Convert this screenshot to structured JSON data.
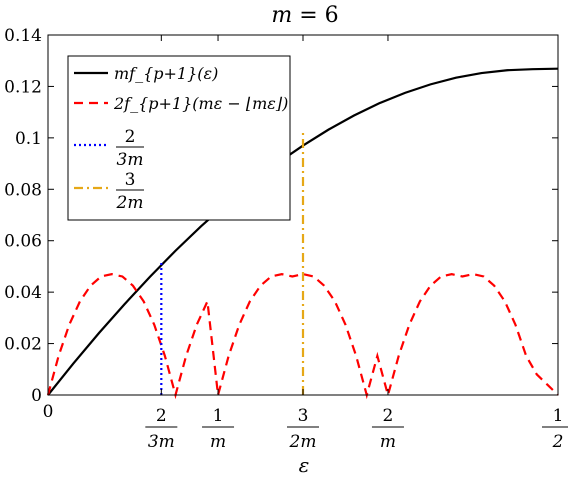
{
  "chart_data": {
    "type": "line",
    "title": "m = 6",
    "xlabel": "ε",
    "ylabel": "",
    "m": 6,
    "xlim": [
      0,
      0.5
    ],
    "ylim": [
      0,
      0.14
    ],
    "yticks": [
      {
        "value": 0,
        "label": "0"
      },
      {
        "value": 0.02,
        "label": "0.02"
      },
      {
        "value": 0.04,
        "label": "0.04"
      },
      {
        "value": 0.06,
        "label": "0.06"
      },
      {
        "value": 0.08,
        "label": "0.08"
      },
      {
        "value": 0.1,
        "label": "0.1"
      },
      {
        "value": 0.12,
        "label": "0.12"
      },
      {
        "value": 0.14,
        "label": "0.14"
      }
    ],
    "xticks": [
      {
        "value": 0,
        "label": "0"
      },
      {
        "value": 0.1111,
        "num": "2",
        "den": "3m"
      },
      {
        "value": 0.1667,
        "num": "1",
        "den": "m"
      },
      {
        "value": 0.25,
        "num": "3",
        "den": "2m"
      },
      {
        "value": 0.3333,
        "num": "2",
        "den": "m"
      },
      {
        "value": 0.5,
        "num": "1",
        "den": "2"
      }
    ],
    "series": [
      {
        "name": "mf_{p+1}(ε)",
        "color": "#000000",
        "style": "solid",
        "x": [
          0,
          0.025,
          0.05,
          0.075,
          0.1,
          0.125,
          0.15,
          0.175,
          0.2,
          0.225,
          0.25,
          0.275,
          0.3,
          0.325,
          0.35,
          0.375,
          0.4,
          0.425,
          0.45,
          0.475,
          0.5
        ],
        "y": [
          0,
          0.0123,
          0.0241,
          0.0353,
          0.046,
          0.0561,
          0.0656,
          0.0744,
          0.0826,
          0.0902,
          0.097,
          0.1032,
          0.1087,
          0.1135,
          0.1175,
          0.1208,
          0.1234,
          0.1252,
          0.1263,
          0.1267,
          0.1269
        ]
      },
      {
        "name": "2f_{p+1}(mε − ⌊mε⌋)",
        "color": "#ff0000",
        "style": "dashed",
        "x": [
          0,
          0.0104,
          0.0208,
          0.0313,
          0.0417,
          0.0521,
          0.0625,
          0.0729,
          0.0833,
          0.0938,
          0.1042,
          0.1146,
          0.125,
          0.1354,
          0.1458,
          0.1563,
          0.1667,
          0.1771,
          0.1875,
          0.1979,
          0.2083,
          0.2188,
          0.2292,
          0.2396,
          0.25,
          0.2604,
          0.2708,
          0.2813,
          0.2917,
          0.3021,
          0.3125,
          0.3229,
          0.3333,
          0.3438,
          0.3542,
          0.3646,
          0.375,
          0.3854,
          0.3958,
          0.4063,
          0.4167,
          0.4271,
          0.4375,
          0.4479,
          0.4583,
          0.4688,
          0.4792,
          0.4896,
          0.5
        ],
        "y": [
          0,
          0.0152,
          0.0273,
          0.0364,
          0.0425,
          0.0461,
          0.047,
          0.0461,
          0.0425,
          0.0364,
          0.0273,
          0.0152,
          0,
          0.0152,
          0.0273,
          0.0364,
          0,
          0.0152,
          0.0273,
          0.0364,
          0.0425,
          0.0461,
          0.047,
          0.0461,
          0.047,
          0.0461,
          0.0425,
          0.0364,
          0.0273,
          0.0152,
          0,
          0.0152,
          0,
          0.0152,
          0.0273,
          0.0364,
          0.0425,
          0.0461,
          0.047,
          0.0461,
          0.047,
          0.0461,
          0.0425,
          0.0364,
          0.0273,
          0.0152,
          0.008,
          0.004,
          0
        ]
      },
      {
        "name": "2/(3m)",
        "color": "#0000ff",
        "style": "dotted",
        "x": [
          0.1111,
          0.1111
        ],
        "y": [
          0,
          0.0514
        ]
      },
      {
        "name": "3/(2m)",
        "color": "#e6a817",
        "style": "dashdot",
        "x": [
          0.25,
          0.25
        ],
        "y": [
          0,
          0.1026
        ]
      }
    ],
    "legend": [
      {
        "text": "mf_{p+1}(ε)",
        "color": "#000000",
        "style": "solid"
      },
      {
        "text": "2f_{p+1}(mε − ⌊mε⌋)",
        "color": "#ff0000",
        "style": "dashed"
      },
      {
        "num": "2",
        "den": "3m",
        "color": "#0000ff",
        "style": "dotted"
      },
      {
        "num": "3",
        "den": "2m",
        "color": "#e6a817",
        "style": "dashdot"
      }
    ],
    "legend_position": "top-left",
    "grid": false
  }
}
